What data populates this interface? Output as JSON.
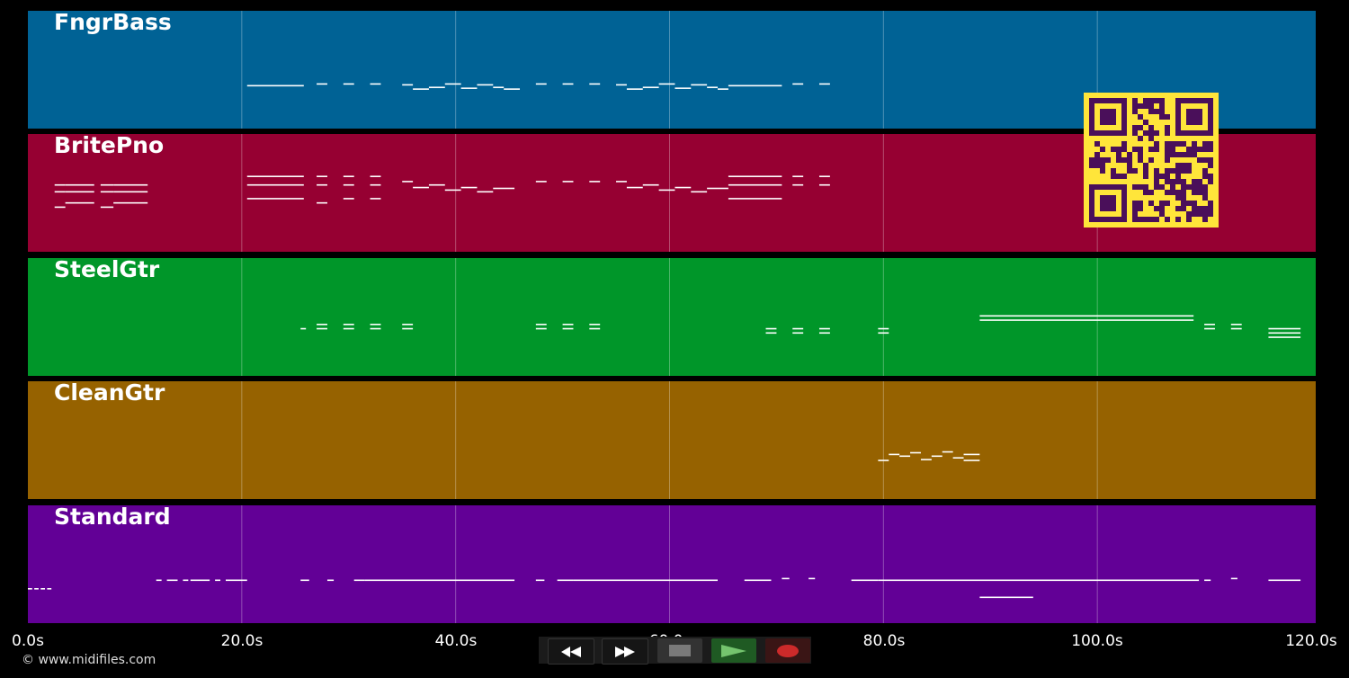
{
  "tracks": [
    {
      "name": "FngrBass",
      "color": "#006295",
      "notes": [
        [
          20.5,
          25.8,
          60
        ],
        [
          27,
          28,
          62
        ],
        [
          29.5,
          30.5,
          62
        ],
        [
          32,
          33,
          62
        ],
        [
          35,
          36,
          61
        ],
        [
          36,
          37.5,
          56
        ],
        [
          37.5,
          39,
          58
        ],
        [
          39,
          40.5,
          62
        ],
        [
          40.5,
          42,
          57
        ],
        [
          42,
          43.5,
          61
        ],
        [
          43.5,
          44.5,
          58
        ],
        [
          44.5,
          46,
          56
        ],
        [
          47.5,
          48.5,
          62
        ],
        [
          50,
          51,
          62
        ],
        [
          52.5,
          53.5,
          62
        ],
        [
          55,
          56,
          61
        ],
        [
          56,
          57.5,
          56
        ],
        [
          57.5,
          59,
          58
        ],
        [
          59,
          60.5,
          62
        ],
        [
          60.5,
          62,
          57
        ],
        [
          62,
          63.5,
          61
        ],
        [
          63.5,
          64.5,
          58
        ],
        [
          64.5,
          65.5,
          56
        ],
        [
          65.5,
          70.5,
          60
        ],
        [
          71.5,
          72.5,
          62
        ],
        [
          74,
          75,
          62
        ]
      ]
    },
    {
      "name": "BritePno",
      "color": "#960032",
      "notes": [
        [
          2.5,
          3.5,
          62
        ],
        [
          2.5,
          3.5,
          80
        ],
        [
          2.5,
          3.5,
          88
        ],
        [
          3.5,
          6.2,
          67
        ],
        [
          3.5,
          6.2,
          80
        ],
        [
          3.5,
          6.2,
          88
        ],
        [
          6.8,
          8,
          62
        ],
        [
          6.8,
          8,
          80
        ],
        [
          6.8,
          8,
          88
        ],
        [
          8,
          11.2,
          67
        ],
        [
          8,
          11.2,
          80
        ],
        [
          8,
          11.2,
          88
        ],
        [
          20.5,
          25.8,
          72
        ],
        [
          20.5,
          25.8,
          88
        ],
        [
          20.5,
          25.8,
          98
        ],
        [
          27,
          28,
          67
        ],
        [
          27,
          28,
          88
        ],
        [
          27,
          28,
          98
        ],
        [
          29.5,
          30.5,
          72
        ],
        [
          29.5,
          30.5,
          88
        ],
        [
          29.5,
          30.5,
          98
        ],
        [
          32,
          33,
          72
        ],
        [
          32,
          33,
          88
        ],
        [
          32,
          33,
          98
        ],
        [
          35,
          36,
          92
        ],
        [
          36,
          37.5,
          85
        ],
        [
          37.5,
          39,
          88
        ],
        [
          39,
          40.5,
          82
        ],
        [
          40.5,
          42,
          85
        ],
        [
          42,
          43.5,
          80
        ],
        [
          43.5,
          45.5,
          84
        ],
        [
          47.5,
          48.5,
          92
        ],
        [
          50,
          51,
          92
        ],
        [
          52.5,
          53.5,
          92
        ],
        [
          55,
          56,
          92
        ],
        [
          56,
          57.5,
          85
        ],
        [
          57.5,
          59,
          88
        ],
        [
          59,
          60.5,
          82
        ],
        [
          60.5,
          62,
          85
        ],
        [
          62,
          63.5,
          80
        ],
        [
          63.5,
          65.5,
          84
        ],
        [
          65.5,
          70.5,
          72
        ],
        [
          65.5,
          70.5,
          88
        ],
        [
          65.5,
          70.5,
          98
        ],
        [
          71.5,
          72.5,
          88
        ],
        [
          71.5,
          72.5,
          98
        ],
        [
          74,
          75,
          88
        ],
        [
          74,
          75,
          98
        ]
      ]
    },
    {
      "name": "SteelGtr",
      "color": "#009629",
      "notes": [
        [
          25.5,
          26,
          65
        ],
        [
          27,
          28,
          65
        ],
        [
          27,
          28,
          70
        ],
        [
          29.5,
          30.5,
          65
        ],
        [
          29.5,
          30.5,
          70
        ],
        [
          32,
          33,
          65
        ],
        [
          32,
          33,
          70
        ],
        [
          35,
          36,
          65
        ],
        [
          35,
          36,
          70
        ],
        [
          47.5,
          48.5,
          65
        ],
        [
          47.5,
          48.5,
          70
        ],
        [
          50,
          51,
          65
        ],
        [
          50,
          51,
          70
        ],
        [
          52.5,
          53.5,
          65
        ],
        [
          52.5,
          53.5,
          70
        ],
        [
          69,
          70,
          60
        ],
        [
          69,
          70,
          65
        ],
        [
          71.5,
          72.5,
          60
        ],
        [
          71.5,
          72.5,
          65
        ],
        [
          74,
          75,
          60
        ],
        [
          74,
          75,
          65
        ],
        [
          79.5,
          80.5,
          60
        ],
        [
          79.5,
          80.5,
          65
        ],
        [
          89,
          109,
          75
        ],
        [
          89,
          109,
          80
        ],
        [
          110,
          111,
          65
        ],
        [
          110,
          111,
          70
        ],
        [
          112.5,
          113.5,
          65
        ],
        [
          112.5,
          113.5,
          70
        ],
        [
          116,
          119,
          55
        ],
        [
          116,
          119,
          60
        ],
        [
          116,
          119,
          65
        ]
      ]
    },
    {
      "name": "CleanGtr",
      "color": "#966200",
      "notes": [
        [
          79.5,
          80.5,
          55
        ],
        [
          80.5,
          81.5,
          62
        ],
        [
          81.5,
          82.5,
          60
        ],
        [
          82.5,
          83.5,
          64
        ],
        [
          83.5,
          84.5,
          56
        ],
        [
          84.5,
          85.5,
          60
        ],
        [
          85.5,
          86.5,
          65
        ],
        [
          86.5,
          87.5,
          58
        ],
        [
          87.5,
          89,
          55
        ],
        [
          87.5,
          89,
          62
        ]
      ]
    },
    {
      "name": "Standard",
      "color": "#620096",
      "notes": [
        [
          0,
          0.4,
          50
        ],
        [
          0.6,
          1,
          50
        ],
        [
          1.2,
          1.6,
          50
        ],
        [
          1.8,
          2.2,
          50
        ],
        [
          12,
          12.5,
          60
        ],
        [
          13,
          14,
          60
        ],
        [
          14.5,
          15,
          60
        ],
        [
          15.2,
          17,
          60
        ],
        [
          17.5,
          18,
          60
        ],
        [
          18.5,
          20.5,
          60
        ],
        [
          25.5,
          26.3,
          60
        ],
        [
          28,
          28.6,
          60
        ],
        [
          30.5,
          31.5,
          60
        ],
        [
          31.5,
          45.5,
          60
        ],
        [
          47.5,
          48.3,
          60
        ],
        [
          49.5,
          51,
          60
        ],
        [
          51,
          64.5,
          60
        ],
        [
          67,
          69.5,
          60
        ],
        [
          70.5,
          71.2,
          62
        ],
        [
          73,
          73.6,
          62
        ],
        [
          77,
          79.5,
          60
        ],
        [
          79.5,
          109.5,
          60
        ],
        [
          89,
          94,
          40
        ],
        [
          110,
          110.6,
          60
        ],
        [
          112.5,
          113.1,
          62
        ],
        [
          116,
          119,
          60
        ]
      ]
    }
  ],
  "timeline": {
    "ticks": [
      "0.0s",
      "20.0s",
      "40.0s",
      "60.0s",
      "80.0s",
      "100.0s",
      "120.0s"
    ],
    "max_seconds": 120
  },
  "copyright": "© www.midifiles.com",
  "transport": {
    "rewind_icon": "rewind-icon",
    "fastforward_icon": "fast-forward-icon",
    "stop_icon": "stop-icon",
    "play_icon": "play-icon",
    "record_icon": "record-icon",
    "stop_color": "#7a7a7a",
    "play_color": "#74c46e",
    "record_color": "#cc2a2a"
  },
  "qr_code": {
    "color": "#4a0f5a",
    "background": "#ffe53a"
  }
}
